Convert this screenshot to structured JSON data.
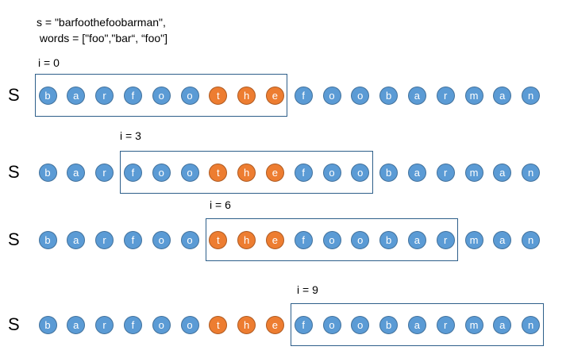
{
  "header": {
    "line1": "s = \"barfoothefoobarman\",",
    "line2": " words = [\"foo\",\"bar“, “foo\"]"
  },
  "string_chars": [
    "b",
    "a",
    "r",
    "f",
    "o",
    "o",
    "t",
    "h",
    "e",
    "f",
    "o",
    "o",
    "b",
    "a",
    "r",
    "m",
    "a",
    "n"
  ],
  "highlight_indices": [
    6,
    7,
    8
  ],
  "colors": {
    "blue_fill": "#5b9bd5",
    "blue_border": "#41719c",
    "orange_fill": "#ed7d31",
    "orange_border": "#ae5a21",
    "box_border": "#2e5f8a"
  },
  "rows": [
    {
      "s_label": "S",
      "i_label": "i = 0",
      "window_start": 0,
      "window_length": 9
    },
    {
      "s_label": "S",
      "i_label": "i = 3",
      "window_start": 3,
      "window_length": 9
    },
    {
      "s_label": "S",
      "i_label": "i = 6",
      "window_start": 6,
      "window_length": 9
    },
    {
      "s_label": "S",
      "i_label": "i = 9",
      "window_start": 9,
      "window_length": 9
    }
  ]
}
